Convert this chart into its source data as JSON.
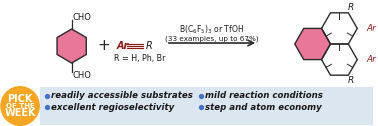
{
  "bg_color": "#ffffff",
  "bottom_panel_color": "#dce6f1",
  "pink_fill": "#e8779a",
  "orange_circle_color": "#f5a623",
  "blue_bullet_color": "#4472c4",
  "dark_red": "#8b1a1a",
  "line_color": "#2a2a2a",
  "text_color": "#1a1a1a",
  "bullet1": "readily accessible substrates",
  "bullet2": "excellent regioselectivity",
  "bullet3": "mild reaction conditions",
  "bullet4": "step and atom economy",
  "R_label": "R = H, Ph, Br",
  "arrow_above": "B(C$_6$F$_5$)$_3$ or TfOH",
  "arrow_below": "(33 examples, up to 67%)",
  "font_size_bullets": 6.2,
  "font_size_labels": 6.5,
  "font_size_small": 5.5
}
